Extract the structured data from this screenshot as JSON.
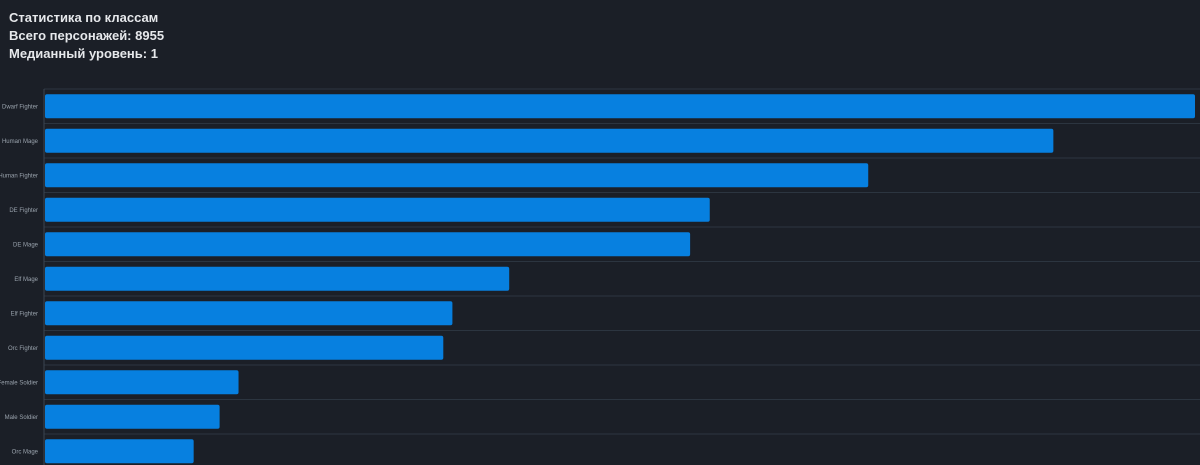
{
  "header": {
    "title": "Статистика по классам",
    "total_characters": "Всего персонажей: 8955",
    "median_level": "Медианный уровень: 1"
  },
  "chart_data": {
    "type": "bar",
    "orientation": "horizontal",
    "categories": [
      "Dwarf Fighter",
      "Human Mage",
      "Human Fighter",
      "DE Fighter",
      "DE Mage",
      "Elf Mage",
      "Elf Fighter",
      "Orc Fighter",
      "Female Soldier",
      "Male Soldier",
      "Orc Mage"
    ],
    "values": [
      1640,
      1438,
      1174,
      948,
      920,
      662,
      581,
      568,
      276,
      249,
      212
    ],
    "xlim": [
      0,
      1640
    ],
    "grid": true,
    "legend": "none",
    "colors": {
      "bar": "#0780e0",
      "grid": "#2c3540",
      "axis": "#3b4552",
      "label": "#9aa3ad"
    }
  }
}
